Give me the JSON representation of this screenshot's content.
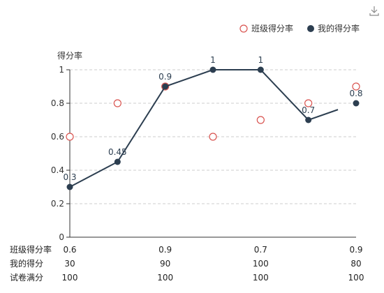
{
  "chart_data": {
    "type": "line",
    "ylabel": "得分率",
    "ylim": [
      0,
      1
    ],
    "yticks": [
      "0",
      "0.2",
      "0.4",
      "0.6",
      "0.8",
      "1"
    ],
    "grid": "dashed horizontal",
    "legend_position": "top-right",
    "series": [
      {
        "name": "班级得分率",
        "style": "hollow-circle",
        "color": "#d9534f",
        "values": [
          0.6,
          0.8,
          0.9,
          0.6,
          0.7,
          0.8,
          0.9
        ]
      },
      {
        "name": "我的得分率",
        "style": "line-with-filled-dot",
        "color": "#2c3e50",
        "values": [
          0.3,
          0.45,
          0.9,
          1.0,
          1.0,
          0.7,
          0.8
        ],
        "labels": [
          "0.3",
          "0.45",
          "0.9",
          "1",
          "1",
          "0.7",
          "0.8"
        ]
      }
    ],
    "table_rows": [
      {
        "label": "班级得分率",
        "cells": [
          "0.6",
          "",
          "0.9",
          "",
          "0.7",
          "",
          "0.9"
        ]
      },
      {
        "label": "我的得分",
        "cells": [
          "30",
          "",
          "90",
          "",
          "100",
          "",
          "80"
        ]
      },
      {
        "label": "试卷满分",
        "cells": [
          "100",
          "",
          "100",
          "",
          "100",
          "",
          "100"
        ]
      }
    ]
  },
  "toolbar": {
    "download_icon": "download-icon"
  }
}
